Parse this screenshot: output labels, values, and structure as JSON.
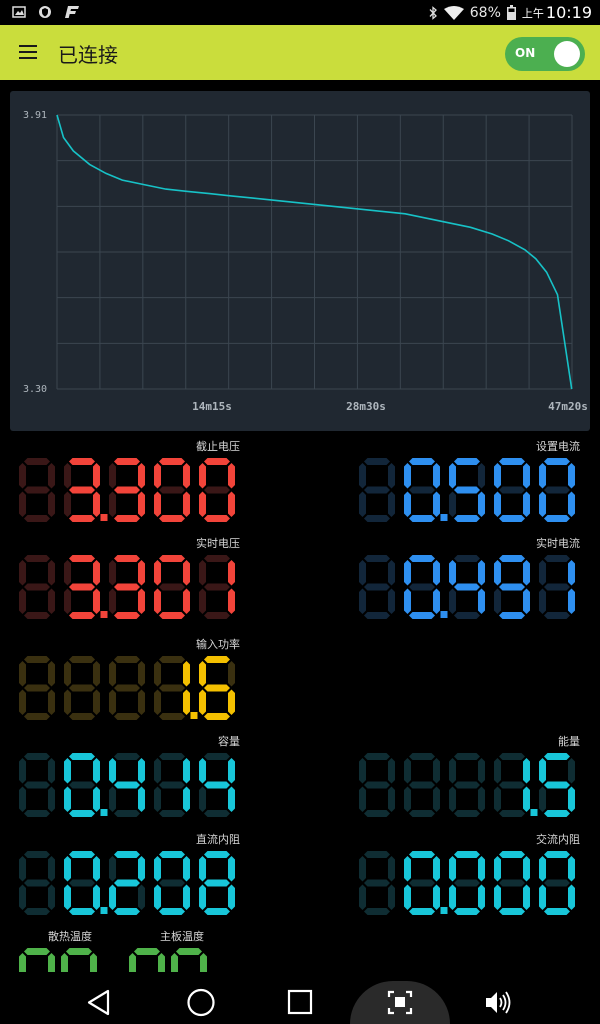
{
  "status_bar": {
    "battery": "68%",
    "ampm": "上午",
    "time": "10:19"
  },
  "app_bar": {
    "title": "已连接",
    "toggle_label": "ON",
    "toggle_on": true
  },
  "chart_data": {
    "type": "line",
    "ylim": [
      3.3,
      3.91
    ],
    "yticks": [
      "3.91",
      "3.30"
    ],
    "xticks": [
      "14m15s",
      "28m30s",
      "47m20s"
    ],
    "x_unit_minutes": [
      0,
      47.33
    ],
    "series": [
      {
        "color": "#17c2c7",
        "x": [
          0,
          0.6,
          1.5,
          3,
          4.5,
          6,
          8,
          10,
          12,
          14,
          16,
          18,
          20,
          22,
          24,
          26,
          28,
          30,
          32,
          34,
          36,
          38,
          40,
          41.5,
          43,
          44,
          45,
          46,
          47.3
        ],
        "y": [
          3.91,
          3.86,
          3.83,
          3.8,
          3.78,
          3.765,
          3.755,
          3.745,
          3.74,
          3.735,
          3.73,
          3.725,
          3.72,
          3.715,
          3.71,
          3.705,
          3.7,
          3.695,
          3.69,
          3.68,
          3.67,
          3.66,
          3.645,
          3.63,
          3.61,
          3.59,
          3.56,
          3.51,
          3.3
        ]
      }
    ]
  },
  "readings": {
    "cutoff_voltage": {
      "label": "截止电压",
      "value": "3.300"
    },
    "set_current": {
      "label": "设置电流",
      "value": "0.500"
    },
    "live_voltage": {
      "label": "实时电压",
      "value": "3.301"
    },
    "live_current": {
      "label": "实时电流",
      "value": "0.491"
    },
    "input_power": {
      "label": "输入功率",
      "value": "1.6"
    },
    "capacity": {
      "label": "容量",
      "value": "0.414"
    },
    "energy": {
      "label": "能量",
      "value": "1.5"
    },
    "dc_resistance": {
      "label": "直流内阻",
      "value": "0.208"
    },
    "ac_resistance": {
      "label": "交流内阻",
      "value": "0.000"
    },
    "heatsink_temp": {
      "label": "散热温度",
      "value": "nn"
    },
    "board_temp": {
      "label": "主板温度",
      "value": "nn"
    }
  },
  "colors": {
    "red": "#f2443a",
    "red_dim": "#3a1717",
    "blue": "#2e8ff0",
    "blue_dim": "#12263a",
    "yellow": "#f4c000",
    "yellow_dim": "#3a3010",
    "cyan": "#18c6d9",
    "cyan_dim": "#0f2d33",
    "green": "#4fb24a",
    "green_dim": "#1a3a18",
    "appbar": "#cadd3c",
    "toggle": "#4caf50"
  },
  "nav_bar": {
    "icons": [
      "back-icon",
      "home-icon",
      "recents-icon",
      "screenshot-icon",
      "volume-icon"
    ]
  }
}
